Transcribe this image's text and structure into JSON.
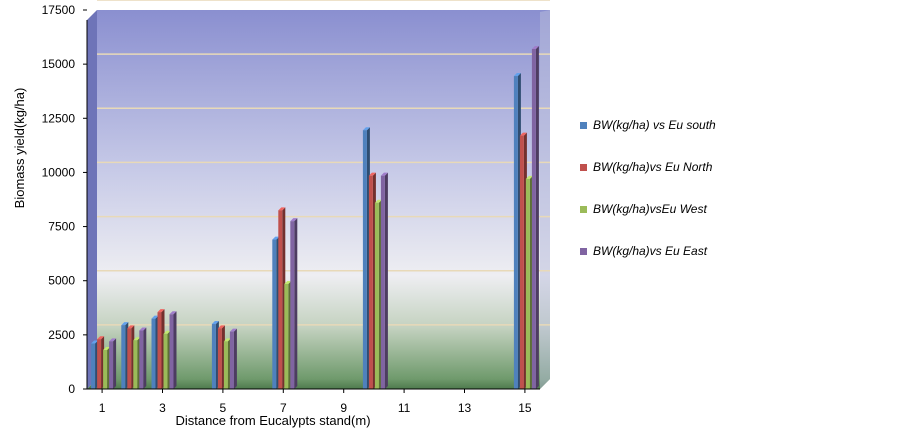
{
  "chart_data": {
    "type": "bar",
    "title": "",
    "xlabel": "Distance from Eucalypts stand(m)",
    "ylabel": "Biomass yield(kg/ha)",
    "ylim": [
      0,
      17500
    ],
    "yticks": [
      0,
      2500,
      5000,
      7500,
      10000,
      12500,
      15000,
      17500
    ],
    "x_tick_labels": [
      "1",
      "3",
      "5",
      "7",
      "9",
      "11",
      "13",
      "15"
    ],
    "x_range": [
      0.5,
      15.5
    ],
    "x": [
      1,
      2,
      3,
      5,
      7,
      10,
      15
    ],
    "series": [
      {
        "name": "BW(kg/ha) vs Eu south",
        "color": "#4f81bd",
        "values": [
          2100,
          2950,
          3250,
          3000,
          6900,
          11950,
          14450
        ]
      },
      {
        "name": "BW(kg/ha)vs Eu North",
        "color": "#c0504d",
        "values": [
          2300,
          2800,
          3550,
          2800,
          8250,
          9850,
          11700
        ]
      },
      {
        "name": "BW(kg/ha)vsEu West",
        "color": "#9bbb59",
        "values": [
          1800,
          2250,
          2550,
          2200,
          4850,
          8600,
          9700
        ]
      },
      {
        "name": "BW(kg/ha)vs Eu East",
        "color": "#8064a2",
        "values": [
          2200,
          2700,
          3450,
          2650,
          7750,
          9850,
          15700
        ]
      }
    ],
    "grid": true,
    "legend_position": "right"
  }
}
